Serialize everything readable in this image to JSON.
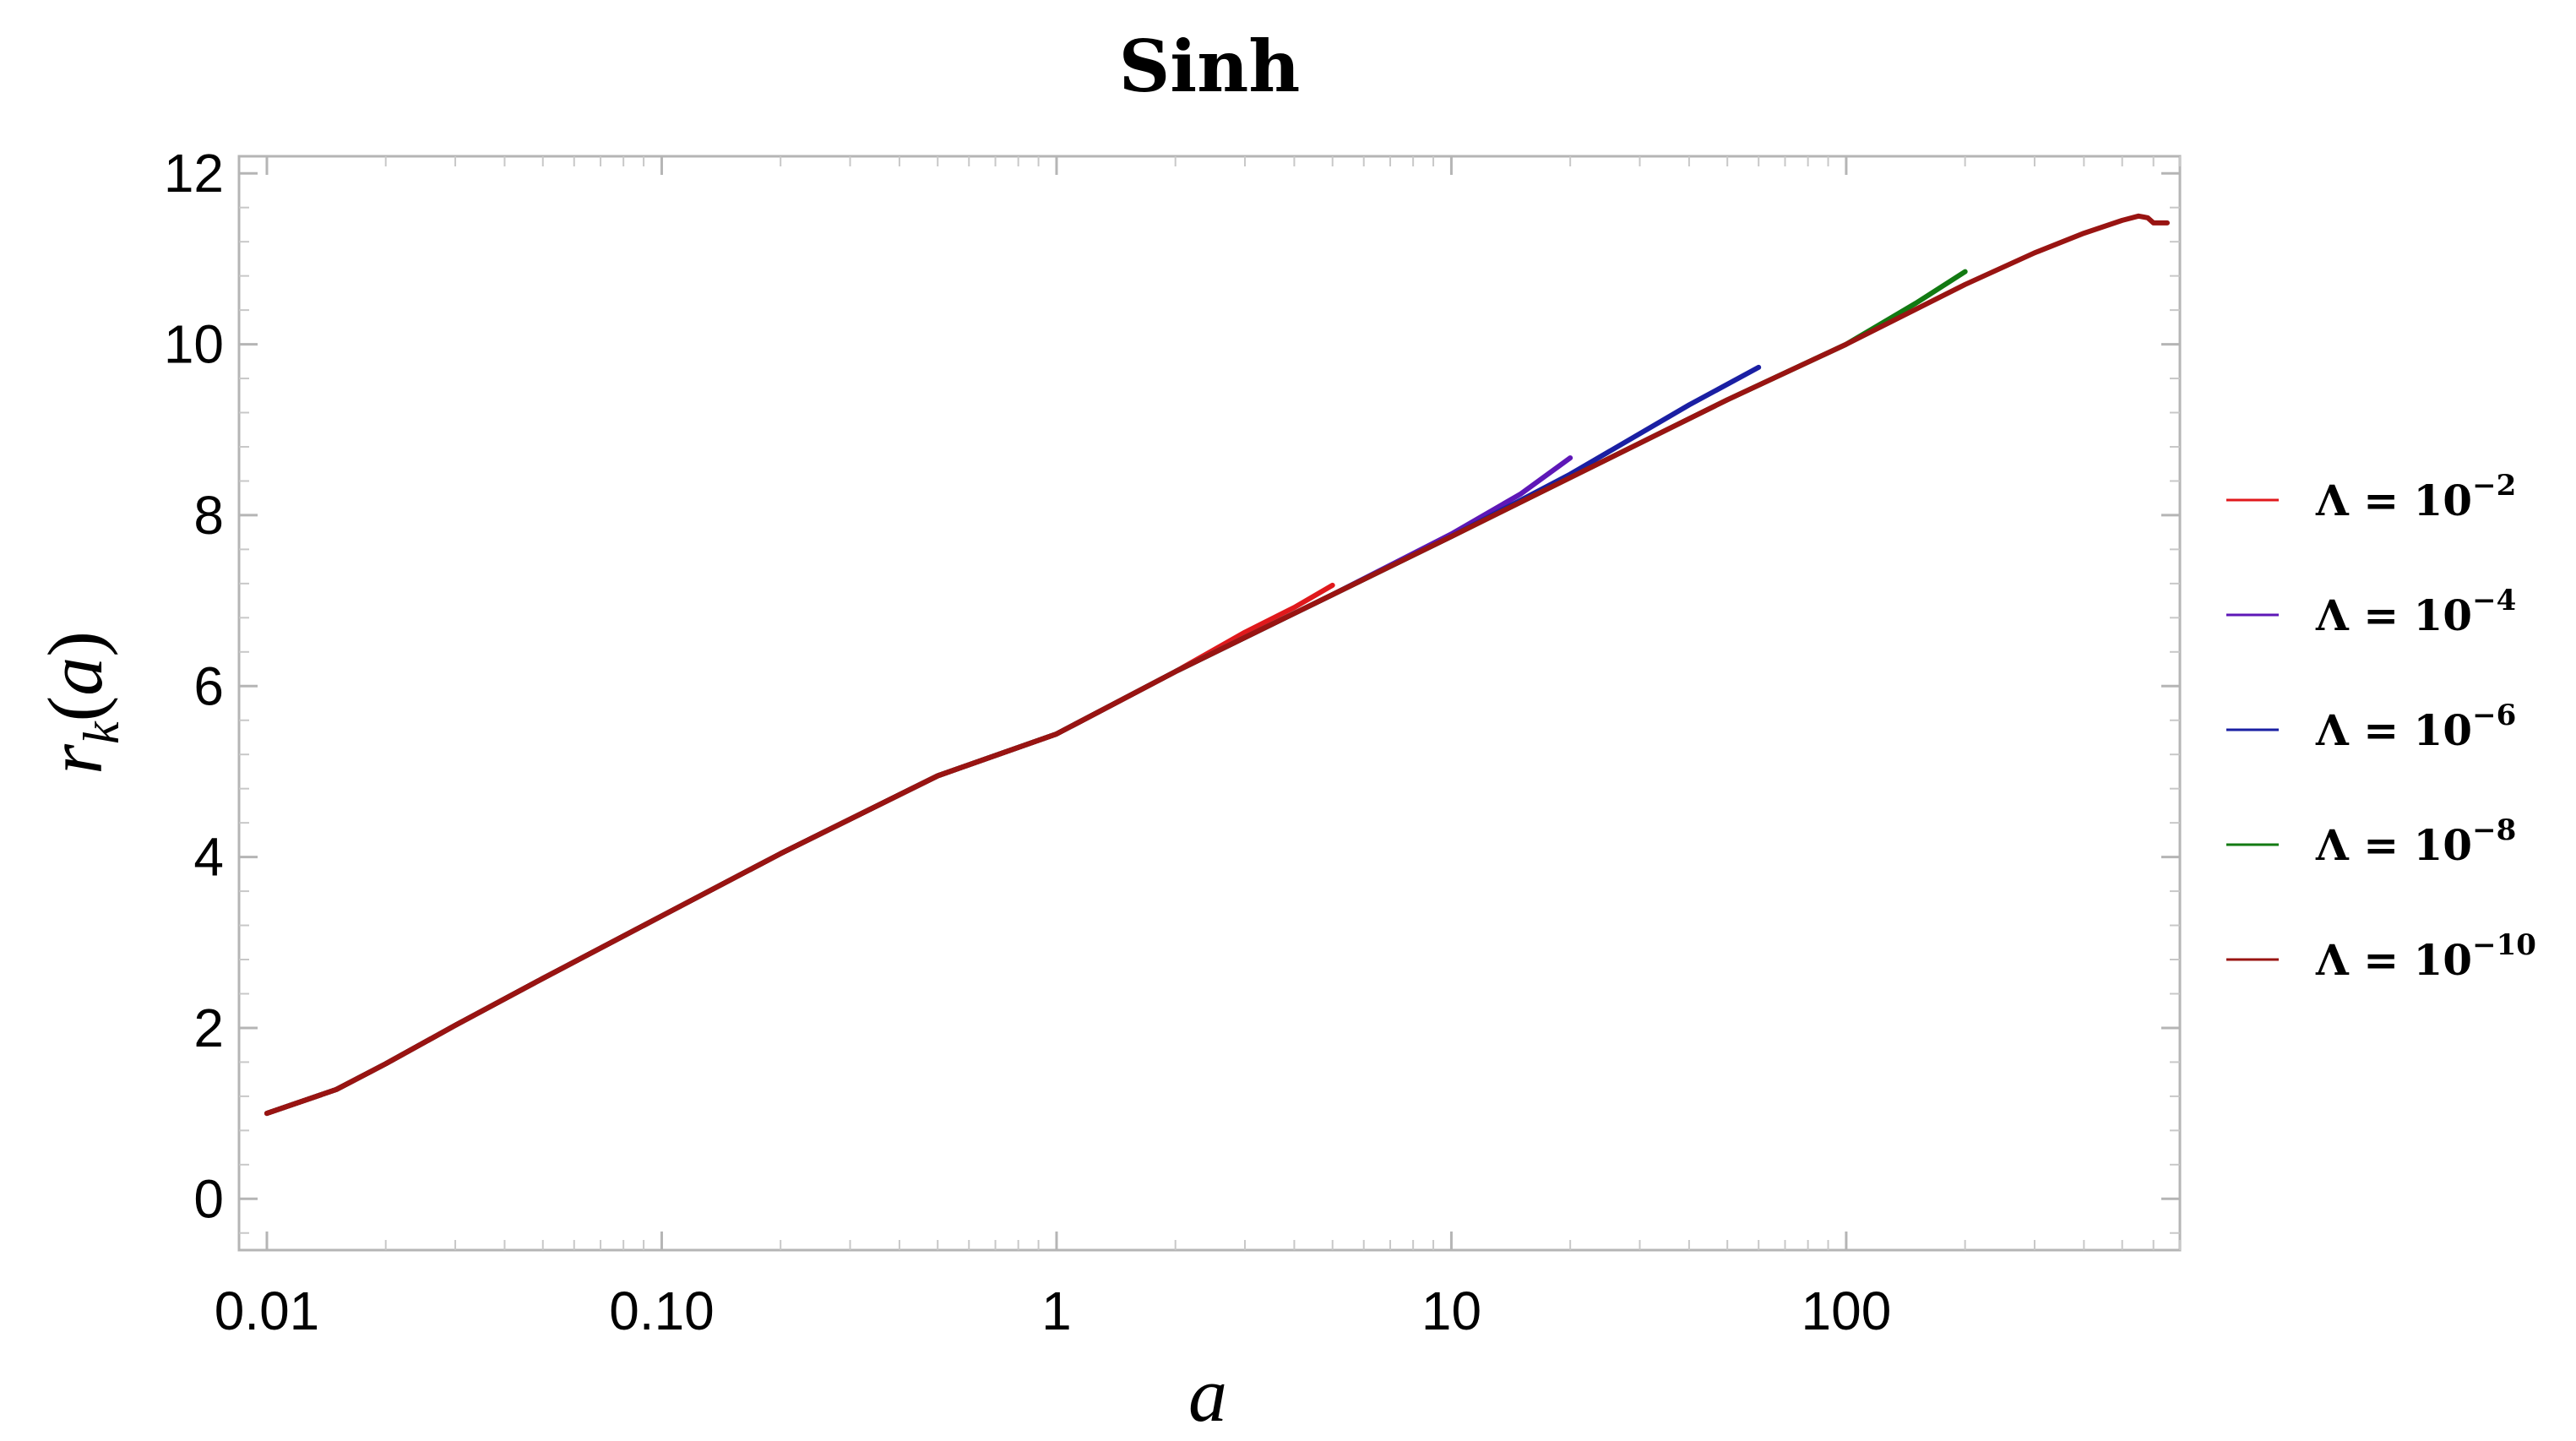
{
  "chart_data": {
    "type": "line",
    "title": "Sinh",
    "xlabel": "a",
    "ylabel": "r_k(a)",
    "x_scale": "log",
    "xlim": [
      0.0085,
      700
    ],
    "ylim": [
      -0.6,
      12.2
    ],
    "x_ticks": [
      {
        "value": 0.01,
        "label": "0.01"
      },
      {
        "value": 0.1,
        "label": "0.10"
      },
      {
        "value": 1,
        "label": "1"
      },
      {
        "value": 10,
        "label": "10"
      },
      {
        "value": 100,
        "label": "100"
      }
    ],
    "y_ticks": [
      {
        "value": 0,
        "label": "0"
      },
      {
        "value": 2,
        "label": "2"
      },
      {
        "value": 4,
        "label": "4"
      },
      {
        "value": 6,
        "label": "6"
      },
      {
        "value": 8,
        "label": "8"
      },
      {
        "value": 10,
        "label": "10"
      },
      {
        "value": 12,
        "label": "12"
      }
    ],
    "grid": false,
    "legend_position": "right",
    "series": [
      {
        "name": "Λ = 10^-2",
        "legend_base": "Λ = 10",
        "legend_exp": "−2",
        "color": "#e0191c",
        "x": [
          0.01,
          0.015,
          0.02,
          0.03,
          0.05,
          0.1,
          0.2,
          0.5,
          1,
          2,
          3,
          4,
          5
        ],
        "y": [
          1.0,
          1.28,
          1.58,
          2.03,
          2.58,
          3.31,
          4.04,
          4.95,
          5.44,
          6.17,
          6.63,
          6.92,
          7.18
        ]
      },
      {
        "name": "Λ = 10^-4",
        "legend_base": "Λ = 10",
        "legend_exp": "−4",
        "color": "#5e17b7",
        "x": [
          0.01,
          0.015,
          0.02,
          0.03,
          0.05,
          0.1,
          0.2,
          0.5,
          1,
          2,
          5,
          10,
          15,
          20
        ],
        "y": [
          1.0,
          1.28,
          1.58,
          2.03,
          2.58,
          3.31,
          4.04,
          4.95,
          5.44,
          6.17,
          7.07,
          7.78,
          8.25,
          8.67
        ]
      },
      {
        "name": "Λ = 10^-6",
        "legend_base": "Λ = 10",
        "legend_exp": "−6",
        "color": "#1a1fa3",
        "x": [
          0.01,
          0.015,
          0.02,
          0.03,
          0.05,
          0.1,
          0.2,
          0.5,
          1,
          2,
          5,
          10,
          20,
          40,
          60
        ],
        "y": [
          1.0,
          1.28,
          1.58,
          2.03,
          2.58,
          3.31,
          4.04,
          4.95,
          5.44,
          6.17,
          7.07,
          7.75,
          8.48,
          9.29,
          9.73
        ]
      },
      {
        "name": "Λ = 10^-8",
        "legend_base": "Λ = 10",
        "legend_exp": "−8",
        "color": "#127a12",
        "x": [
          0.01,
          0.015,
          0.02,
          0.03,
          0.05,
          0.1,
          0.2,
          0.5,
          1,
          2,
          5,
          10,
          20,
          50,
          100,
          150,
          200
        ],
        "y": [
          1.0,
          1.28,
          1.58,
          2.03,
          2.58,
          3.31,
          4.04,
          4.95,
          5.44,
          6.17,
          7.07,
          7.75,
          8.44,
          9.35,
          10.0,
          10.48,
          10.85
        ]
      },
      {
        "name": "Λ = 10^-10",
        "legend_base": "Λ = 10",
        "legend_exp": "−10",
        "color": "#991412",
        "x": [
          0.01,
          0.015,
          0.02,
          0.03,
          0.05,
          0.1,
          0.2,
          0.5,
          1,
          2,
          5,
          10,
          20,
          50,
          100,
          200,
          300,
          400,
          500,
          550,
          580,
          600,
          650
        ],
        "y": [
          1.0,
          1.28,
          1.58,
          2.03,
          2.58,
          3.31,
          4.04,
          4.95,
          5.44,
          6.17,
          7.07,
          7.75,
          8.44,
          9.35,
          10.0,
          10.7,
          11.07,
          11.3,
          11.45,
          11.5,
          11.48,
          11.42,
          11.42
        ]
      }
    ]
  }
}
